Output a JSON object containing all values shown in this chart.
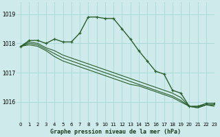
{
  "title": "Graphe pression niveau de la mer (hPa)",
  "bg_color": "#ceeaea",
  "grid_color": "#a8d8d8",
  "line_color": "#2a5e2a",
  "xlim": [
    -0.5,
    23
  ],
  "ylim": [
    1015.3,
    1019.4
  ],
  "yticks": [
    1016,
    1017,
    1018,
    1019
  ],
  "xticks": [
    0,
    1,
    2,
    3,
    4,
    5,
    6,
    7,
    8,
    9,
    10,
    11,
    12,
    13,
    14,
    15,
    16,
    17,
    18,
    19,
    20,
    21,
    22,
    23
  ],
  "series": [
    {
      "y": [
        1017.9,
        1018.1,
        1018.1,
        1018.0,
        1018.15,
        1018.05,
        1018.05,
        1018.35,
        1018.9,
        1018.9,
        1018.85,
        1018.85,
        1018.5,
        1018.15,
        1017.75,
        1017.4,
        1017.05,
        1016.95,
        1016.4,
        1016.3,
        1015.85,
        1015.85,
        1015.95,
        1015.95
      ],
      "marker": true,
      "lw": 1.0
    },
    {
      "y": [
        1017.9,
        1018.05,
        1018.0,
        1017.85,
        1017.75,
        1017.6,
        1017.5,
        1017.4,
        1017.3,
        1017.2,
        1017.1,
        1017.0,
        1016.9,
        1016.8,
        1016.7,
        1016.6,
        1016.5,
        1016.4,
        1016.3,
        1016.15,
        1015.85,
        1015.85,
        1015.9,
        1015.9
      ],
      "marker": false,
      "lw": 0.8
    },
    {
      "y": [
        1017.9,
        1018.0,
        1017.95,
        1017.8,
        1017.65,
        1017.5,
        1017.4,
        1017.3,
        1017.2,
        1017.1,
        1017.0,
        1016.9,
        1016.8,
        1016.7,
        1016.6,
        1016.5,
        1016.4,
        1016.3,
        1016.2,
        1016.05,
        1015.85,
        1015.8,
        1015.9,
        1015.9
      ],
      "marker": false,
      "lw": 0.8
    },
    {
      "y": [
        1017.9,
        1017.95,
        1017.9,
        1017.75,
        1017.55,
        1017.4,
        1017.3,
        1017.2,
        1017.1,
        1017.0,
        1016.9,
        1016.8,
        1016.7,
        1016.6,
        1016.55,
        1016.45,
        1016.35,
        1016.25,
        1016.15,
        1016.0,
        1015.85,
        1015.8,
        1015.9,
        1015.85
      ],
      "marker": false,
      "lw": 0.8
    }
  ]
}
